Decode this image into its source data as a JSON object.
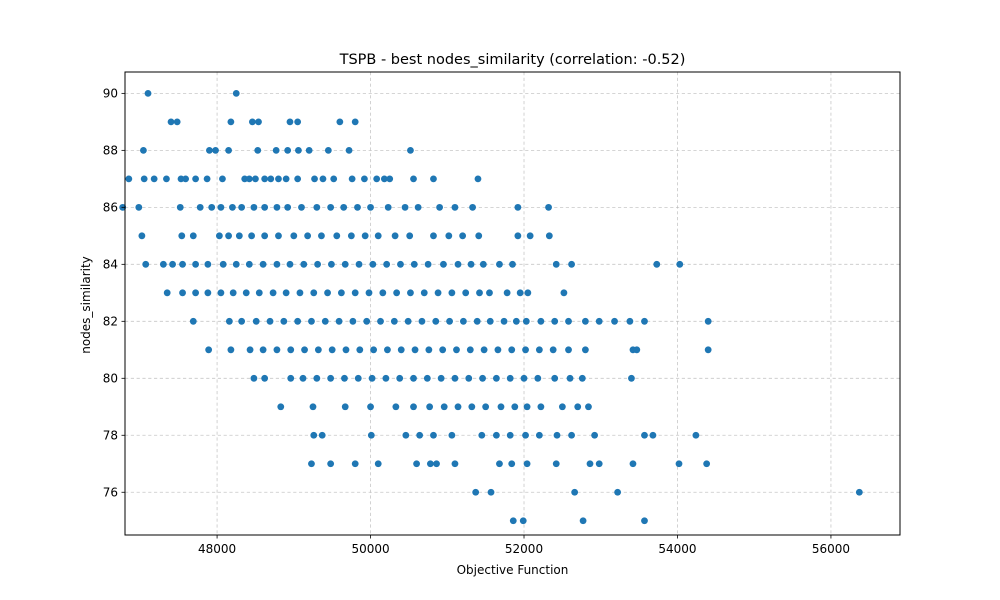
{
  "chart_data": {
    "type": "scatter",
    "title": "TSPB - best nodes_similarity (correlation: -0.52)",
    "xlabel": "Objective Function",
    "ylabel": "nodes_similarity",
    "xlim": [
      46800,
      56900
    ],
    "ylim": [
      74.5,
      90.75
    ],
    "xticks": [
      48000,
      50000,
      52000,
      54000,
      56000
    ],
    "yticks": [
      76,
      78,
      80,
      82,
      84,
      86,
      88,
      90
    ],
    "grid": true,
    "marker_color": "#1f77b4",
    "series": [
      {
        "points": [
          [
            47100,
            90
          ],
          [
            48250,
            90
          ],
          [
            47400,
            89
          ],
          [
            47480,
            89
          ],
          [
            48180,
            89
          ],
          [
            48460,
            89
          ],
          [
            48540,
            89
          ],
          [
            48950,
            89
          ],
          [
            49050,
            89
          ],
          [
            49600,
            89
          ],
          [
            49800,
            89
          ],
          [
            47040,
            88
          ],
          [
            47900,
            88
          ],
          [
            47980,
            88
          ],
          [
            48150,
            88
          ],
          [
            48530,
            88
          ],
          [
            48770,
            88
          ],
          [
            48920,
            88
          ],
          [
            49060,
            88
          ],
          [
            49200,
            88
          ],
          [
            49450,
            88
          ],
          [
            49720,
            88
          ],
          [
            50520,
            88
          ],
          [
            46850,
            87
          ],
          [
            47050,
            87
          ],
          [
            47180,
            87
          ],
          [
            47340,
            87
          ],
          [
            47530,
            87
          ],
          [
            47590,
            87
          ],
          [
            47720,
            87
          ],
          [
            47870,
            87
          ],
          [
            48070,
            87
          ],
          [
            48360,
            87
          ],
          [
            48420,
            87
          ],
          [
            48500,
            87
          ],
          [
            48620,
            87
          ],
          [
            48700,
            87
          ],
          [
            48800,
            87
          ],
          [
            48900,
            87
          ],
          [
            49050,
            87
          ],
          [
            49270,
            87
          ],
          [
            49380,
            87
          ],
          [
            49520,
            87
          ],
          [
            49760,
            87
          ],
          [
            49920,
            87
          ],
          [
            50080,
            87
          ],
          [
            50180,
            87
          ],
          [
            50250,
            87
          ],
          [
            50560,
            87
          ],
          [
            50820,
            87
          ],
          [
            51400,
            87
          ],
          [
            46770,
            86
          ],
          [
            46980,
            86
          ],
          [
            47520,
            86
          ],
          [
            47780,
            86
          ],
          [
            47930,
            86
          ],
          [
            48050,
            86
          ],
          [
            48200,
            86
          ],
          [
            48320,
            86
          ],
          [
            48480,
            86
          ],
          [
            48620,
            86
          ],
          [
            48780,
            86
          ],
          [
            48920,
            86
          ],
          [
            49100,
            86
          ],
          [
            49300,
            86
          ],
          [
            49480,
            86
          ],
          [
            49650,
            86
          ],
          [
            49830,
            86
          ],
          [
            50000,
            86
          ],
          [
            50230,
            86
          ],
          [
            50450,
            86
          ],
          [
            50620,
            86
          ],
          [
            50900,
            86
          ],
          [
            51100,
            86
          ],
          [
            51330,
            86
          ],
          [
            51920,
            86
          ],
          [
            52320,
            86
          ],
          [
            47020,
            85
          ],
          [
            47540,
            85
          ],
          [
            47690,
            85
          ],
          [
            48030,
            85
          ],
          [
            48150,
            85
          ],
          [
            48290,
            85
          ],
          [
            48450,
            85
          ],
          [
            48620,
            85
          ],
          [
            48800,
            85
          ],
          [
            49000,
            85
          ],
          [
            49180,
            85
          ],
          [
            49360,
            85
          ],
          [
            49560,
            85
          ],
          [
            49750,
            85
          ],
          [
            49930,
            85
          ],
          [
            50100,
            85
          ],
          [
            50320,
            85
          ],
          [
            50510,
            85
          ],
          [
            50820,
            85
          ],
          [
            51020,
            85
          ],
          [
            51200,
            85
          ],
          [
            51410,
            85
          ],
          [
            51920,
            85
          ],
          [
            52080,
            85
          ],
          [
            52330,
            85
          ],
          [
            47070,
            84
          ],
          [
            47300,
            84
          ],
          [
            47420,
            84
          ],
          [
            47550,
            84
          ],
          [
            47720,
            84
          ],
          [
            47880,
            84
          ],
          [
            48080,
            84
          ],
          [
            48250,
            84
          ],
          [
            48420,
            84
          ],
          [
            48600,
            84
          ],
          [
            48780,
            84
          ],
          [
            48950,
            84
          ],
          [
            49130,
            84
          ],
          [
            49310,
            84
          ],
          [
            49490,
            84
          ],
          [
            49670,
            84
          ],
          [
            49850,
            84
          ],
          [
            50030,
            84
          ],
          [
            50210,
            84
          ],
          [
            50390,
            84
          ],
          [
            50570,
            84
          ],
          [
            50750,
            84
          ],
          [
            50950,
            84
          ],
          [
            51140,
            84
          ],
          [
            51310,
            84
          ],
          [
            51470,
            84
          ],
          [
            51680,
            84
          ],
          [
            51850,
            84
          ],
          [
            52420,
            84
          ],
          [
            52620,
            84
          ],
          [
            53730,
            84
          ],
          [
            54030,
            84
          ],
          [
            47350,
            83
          ],
          [
            47550,
            83
          ],
          [
            47720,
            83
          ],
          [
            47880,
            83
          ],
          [
            48050,
            83
          ],
          [
            48210,
            83
          ],
          [
            48380,
            83
          ],
          [
            48550,
            83
          ],
          [
            48730,
            83
          ],
          [
            48900,
            83
          ],
          [
            49080,
            83
          ],
          [
            49260,
            83
          ],
          [
            49440,
            83
          ],
          [
            49620,
            83
          ],
          [
            49800,
            83
          ],
          [
            49980,
            83
          ],
          [
            50160,
            83
          ],
          [
            50340,
            83
          ],
          [
            50520,
            83
          ],
          [
            50700,
            83
          ],
          [
            50880,
            83
          ],
          [
            51060,
            83
          ],
          [
            51240,
            83
          ],
          [
            51420,
            83
          ],
          [
            51550,
            83
          ],
          [
            51780,
            83
          ],
          [
            51950,
            83
          ],
          [
            52050,
            83
          ],
          [
            52520,
            83
          ],
          [
            47690,
            82
          ],
          [
            48160,
            82
          ],
          [
            48320,
            82
          ],
          [
            48510,
            82
          ],
          [
            48690,
            82
          ],
          [
            48870,
            82
          ],
          [
            49050,
            82
          ],
          [
            49230,
            82
          ],
          [
            49410,
            82
          ],
          [
            49590,
            82
          ],
          [
            49770,
            82
          ],
          [
            49950,
            82
          ],
          [
            50130,
            82
          ],
          [
            50310,
            82
          ],
          [
            50490,
            82
          ],
          [
            50670,
            82
          ],
          [
            50850,
            82
          ],
          [
            51030,
            82
          ],
          [
            51210,
            82
          ],
          [
            51390,
            82
          ],
          [
            51560,
            82
          ],
          [
            51740,
            82
          ],
          [
            51900,
            82
          ],
          [
            52030,
            82
          ],
          [
            52220,
            82
          ],
          [
            52400,
            82
          ],
          [
            52580,
            82
          ],
          [
            52800,
            82
          ],
          [
            52980,
            82
          ],
          [
            53180,
            82
          ],
          [
            53380,
            82
          ],
          [
            53570,
            82
          ],
          [
            54400,
            82
          ],
          [
            47890,
            81
          ],
          [
            48180,
            81
          ],
          [
            48430,
            81
          ],
          [
            48600,
            81
          ],
          [
            48780,
            81
          ],
          [
            48960,
            81
          ],
          [
            49140,
            81
          ],
          [
            49320,
            81
          ],
          [
            49500,
            81
          ],
          [
            49680,
            81
          ],
          [
            49860,
            81
          ],
          [
            50040,
            81
          ],
          [
            50220,
            81
          ],
          [
            50400,
            81
          ],
          [
            50580,
            81
          ],
          [
            50760,
            81
          ],
          [
            50940,
            81
          ],
          [
            51120,
            81
          ],
          [
            51300,
            81
          ],
          [
            51480,
            81
          ],
          [
            51660,
            81
          ],
          [
            51840,
            81
          ],
          [
            52020,
            81
          ],
          [
            52200,
            81
          ],
          [
            52380,
            81
          ],
          [
            52580,
            81
          ],
          [
            52800,
            81
          ],
          [
            53420,
            81
          ],
          [
            53470,
            81
          ],
          [
            54400,
            81
          ],
          [
            48480,
            80
          ],
          [
            48620,
            80
          ],
          [
            48960,
            80
          ],
          [
            49120,
            80
          ],
          [
            49300,
            80
          ],
          [
            49480,
            80
          ],
          [
            49660,
            80
          ],
          [
            49840,
            80
          ],
          [
            50020,
            80
          ],
          [
            50200,
            80
          ],
          [
            50380,
            80
          ],
          [
            50560,
            80
          ],
          [
            50740,
            80
          ],
          [
            50920,
            80
          ],
          [
            51100,
            80
          ],
          [
            51280,
            80
          ],
          [
            51460,
            80
          ],
          [
            51640,
            80
          ],
          [
            51820,
            80
          ],
          [
            52000,
            80
          ],
          [
            52180,
            80
          ],
          [
            52400,
            80
          ],
          [
            52600,
            80
          ],
          [
            52760,
            80
          ],
          [
            53400,
            80
          ],
          [
            48830,
            79
          ],
          [
            49250,
            79
          ],
          [
            49670,
            79
          ],
          [
            50000,
            79
          ],
          [
            50330,
            79
          ],
          [
            50560,
            79
          ],
          [
            50770,
            79
          ],
          [
            50960,
            79
          ],
          [
            51140,
            79
          ],
          [
            51320,
            79
          ],
          [
            51500,
            79
          ],
          [
            51700,
            79
          ],
          [
            51880,
            79
          ],
          [
            52040,
            79
          ],
          [
            52220,
            79
          ],
          [
            52500,
            79
          ],
          [
            52700,
            79
          ],
          [
            52840,
            79
          ],
          [
            49260,
            78
          ],
          [
            49370,
            78
          ],
          [
            50010,
            78
          ],
          [
            50460,
            78
          ],
          [
            50640,
            78
          ],
          [
            50820,
            78
          ],
          [
            51060,
            78
          ],
          [
            51450,
            78
          ],
          [
            51640,
            78
          ],
          [
            51820,
            78
          ],
          [
            52020,
            78
          ],
          [
            52200,
            78
          ],
          [
            52430,
            78
          ],
          [
            52620,
            78
          ],
          [
            52920,
            78
          ],
          [
            53570,
            78
          ],
          [
            53680,
            78
          ],
          [
            54240,
            78
          ],
          [
            49230,
            77
          ],
          [
            49480,
            77
          ],
          [
            49800,
            77
          ],
          [
            50100,
            77
          ],
          [
            50600,
            77
          ],
          [
            50780,
            77
          ],
          [
            50860,
            77
          ],
          [
            51100,
            77
          ],
          [
            51680,
            77
          ],
          [
            51840,
            77
          ],
          [
            52040,
            77
          ],
          [
            52420,
            77
          ],
          [
            52860,
            77
          ],
          [
            52980,
            77
          ],
          [
            53420,
            77
          ],
          [
            54020,
            77
          ],
          [
            54380,
            77
          ],
          [
            51370,
            76
          ],
          [
            51570,
            76
          ],
          [
            52660,
            76
          ],
          [
            53220,
            76
          ],
          [
            56370,
            76
          ],
          [
            51860,
            75
          ],
          [
            51990,
            75
          ],
          [
            52770,
            75
          ],
          [
            53570,
            75
          ]
        ]
      }
    ]
  }
}
